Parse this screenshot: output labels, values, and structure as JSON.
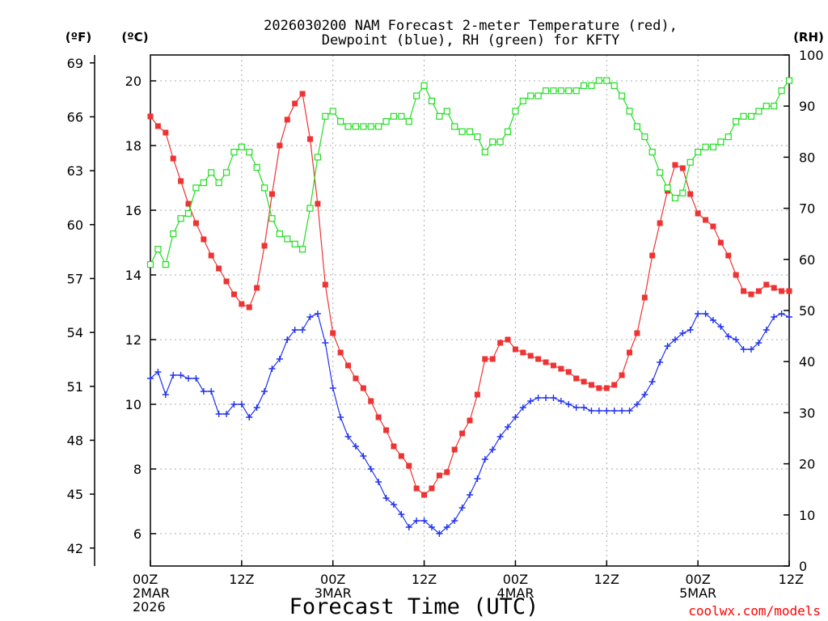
{
  "chart_data": {
    "type": "line",
    "title_lines": [
      "2026030200 NAM Forecast 2-meter Temperature (red),",
      "Dewpoint (blue), RH (green) for KFTY"
    ],
    "xlabel": "Forecast Time (UTC)",
    "credit": "coolwx.com/models",
    "units": {
      "fahrenheit": "(ºF)",
      "celsius": "(ºC)",
      "rh": "(RH)"
    },
    "x_hours_range": [
      0,
      84
    ],
    "x_ticks": [
      {
        "hour": 0,
        "lines": [
          "00Z",
          "2MAR",
          "2026"
        ]
      },
      {
        "hour": 12,
        "lines": [
          "12Z"
        ]
      },
      {
        "hour": 24,
        "lines": [
          "00Z",
          "3MAR"
        ]
      },
      {
        "hour": 36,
        "lines": [
          "12Z"
        ]
      },
      {
        "hour": 48,
        "lines": [
          "00Z",
          "4MAR"
        ]
      },
      {
        "hour": 60,
        "lines": [
          "12Z"
        ]
      },
      {
        "hour": 72,
        "lines": [
          "00Z",
          "5MAR"
        ]
      },
      {
        "hour": 84,
        "lines": [
          "12Z"
        ]
      }
    ],
    "celsius_axis": {
      "range": [
        5,
        20.8
      ],
      "ticks": [
        "6",
        "8",
        "10",
        "12",
        "14",
        "16",
        "18",
        "20"
      ]
    },
    "fahrenheit_axis": {
      "range": [
        41,
        69.44
      ],
      "ticks": [
        "42",
        "45",
        "48",
        "51",
        "54",
        "57",
        "60",
        "63",
        "66",
        "69"
      ]
    },
    "rh_axis": {
      "range": [
        0,
        100
      ],
      "ticks": [
        "0",
        "10",
        "20",
        "30",
        "40",
        "50",
        "60",
        "70",
        "80",
        "90",
        "100"
      ]
    },
    "grid": true,
    "series": [
      {
        "name": "Temperature",
        "color": "#ee3333",
        "marker": "filled-square",
        "axis": "celsius",
        "values": [
          18.9,
          18.6,
          18.4,
          17.6,
          16.9,
          16.2,
          15.6,
          15.1,
          14.6,
          14.2,
          13.8,
          13.4,
          13.1,
          13.0,
          13.6,
          14.9,
          16.5,
          18.0,
          18.8,
          19.3,
          19.6,
          18.2,
          16.2,
          13.7,
          12.2,
          11.6,
          11.2,
          10.8,
          10.5,
          10.1,
          9.6,
          9.2,
          8.7,
          8.4,
          8.1,
          7.4,
          7.2,
          7.4,
          7.8,
          7.9,
          8.6,
          9.1,
          9.5,
          10.3,
          11.4,
          11.4,
          11.9,
          12.0,
          11.7,
          11.6,
          11.5,
          11.4,
          11.3,
          11.2,
          11.1,
          11.0,
          10.8,
          10.7,
          10.6,
          10.5,
          10.5,
          10.6,
          10.9,
          11.6,
          12.2,
          13.3,
          14.6,
          15.6,
          16.6,
          17.4,
          17.3,
          16.5,
          15.9,
          15.7,
          15.5,
          15.0,
          14.6,
          14.0,
          13.5,
          13.4,
          13.5,
          13.7,
          13.6,
          13.5,
          13.5
        ]
      },
      {
        "name": "Dewpoint",
        "color": "#2233ee",
        "marker": "plus",
        "axis": "celsius",
        "values": [
          10.8,
          11.0,
          10.3,
          10.9,
          10.9,
          10.8,
          10.8,
          10.4,
          10.4,
          9.7,
          9.7,
          10.0,
          10.0,
          9.6,
          9.9,
          10.4,
          11.1,
          11.4,
          12.0,
          12.3,
          12.3,
          12.7,
          12.8,
          11.9,
          10.5,
          9.6,
          9.0,
          8.7,
          8.4,
          8.0,
          7.6,
          7.1,
          6.9,
          6.6,
          6.2,
          6.4,
          6.4,
          6.2,
          6.0,
          6.2,
          6.4,
          6.8,
          7.2,
          7.7,
          8.3,
          8.6,
          9.0,
          9.3,
          9.6,
          9.9,
          10.1,
          10.2,
          10.2,
          10.2,
          10.1,
          10.0,
          9.9,
          9.9,
          9.8,
          9.8,
          9.8,
          9.8,
          9.8,
          9.8,
          10.0,
          10.3,
          10.7,
          11.3,
          11.8,
          12.0,
          12.2,
          12.3,
          12.8,
          12.8,
          12.6,
          12.4,
          12.1,
          12.0,
          11.7,
          11.7,
          11.9,
          12.3,
          12.7,
          12.8,
          12.7
        ]
      },
      {
        "name": "RH",
        "color": "#22dd22",
        "marker": "open-square",
        "axis": "rh",
        "values": [
          59,
          62,
          59,
          65,
          68,
          69,
          74,
          75,
          77,
          75,
          77,
          81,
          82,
          81,
          78,
          74,
          68,
          65,
          64,
          63,
          62,
          70,
          80,
          88,
          89,
          87,
          86,
          86,
          86,
          86,
          86,
          87,
          88,
          88,
          87,
          92,
          94,
          91,
          88,
          89,
          86,
          85,
          85,
          84,
          81,
          83,
          83,
          85,
          89,
          91,
          92,
          92,
          93,
          93,
          93,
          93,
          93,
          94,
          94,
          95,
          95,
          94,
          92,
          89,
          86,
          84,
          81,
          77,
          74,
          72,
          73,
          79,
          81,
          82,
          82,
          83,
          84,
          87,
          88,
          88,
          89,
          90,
          90,
          93,
          95
        ]
      }
    ]
  }
}
